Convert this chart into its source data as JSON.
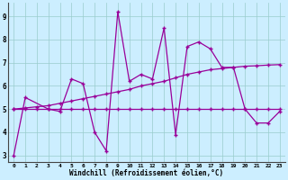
{
  "line1_x": [
    0,
    1,
    3,
    4,
    5,
    6,
    7,
    8,
    9,
    10,
    11,
    12,
    13,
    14,
    15,
    16,
    17,
    18,
    19,
    20,
    21,
    22,
    23
  ],
  "line1_y": [
    3.0,
    5.5,
    5.0,
    4.9,
    6.3,
    6.1,
    4.0,
    3.2,
    9.2,
    6.2,
    6.5,
    6.3,
    8.5,
    3.9,
    7.7,
    7.9,
    7.6,
    6.8,
    6.8,
    5.0,
    4.4,
    4.4,
    4.9
  ],
  "line2_x": [
    0,
    1,
    2,
    3,
    4,
    5,
    6,
    7,
    8,
    9,
    10,
    11,
    12,
    13,
    14,
    15,
    16,
    17,
    18,
    19,
    20,
    21,
    22,
    23
  ],
  "line2_y": [
    5.0,
    5.0,
    5.0,
    5.0,
    5.0,
    5.0,
    5.0,
    5.0,
    5.0,
    5.0,
    5.0,
    5.0,
    5.0,
    5.0,
    5.0,
    5.0,
    5.0,
    5.0,
    5.0,
    5.0,
    5.0,
    5.0,
    5.0,
    5.0
  ],
  "line3_x": [
    0,
    1,
    2,
    3,
    4,
    5,
    6,
    7,
    8,
    9,
    10,
    11,
    12,
    13,
    14,
    15,
    16,
    17,
    18,
    19,
    20,
    21,
    22,
    23
  ],
  "line3_y": [
    5.0,
    5.05,
    5.1,
    5.15,
    5.25,
    5.35,
    5.45,
    5.55,
    5.65,
    5.75,
    5.85,
    6.0,
    6.1,
    6.2,
    6.35,
    6.5,
    6.6,
    6.7,
    6.75,
    6.8,
    6.85,
    6.87,
    6.9,
    6.92
  ],
  "color": "#990099",
  "bg_color": "#cceeff",
  "grid_color": "#99cccc",
  "xlabel": "Windchill (Refroidissement éolien,°C)",
  "ylabel_ticks": [
    3,
    4,
    5,
    6,
    7,
    8,
    9
  ],
  "xlim": [
    -0.5,
    23.5
  ],
  "ylim": [
    2.7,
    9.6
  ],
  "xticks": [
    0,
    1,
    2,
    3,
    4,
    5,
    6,
    7,
    8,
    9,
    10,
    11,
    12,
    13,
    14,
    15,
    16,
    17,
    18,
    19,
    20,
    21,
    22,
    23
  ],
  "marker": "+"
}
